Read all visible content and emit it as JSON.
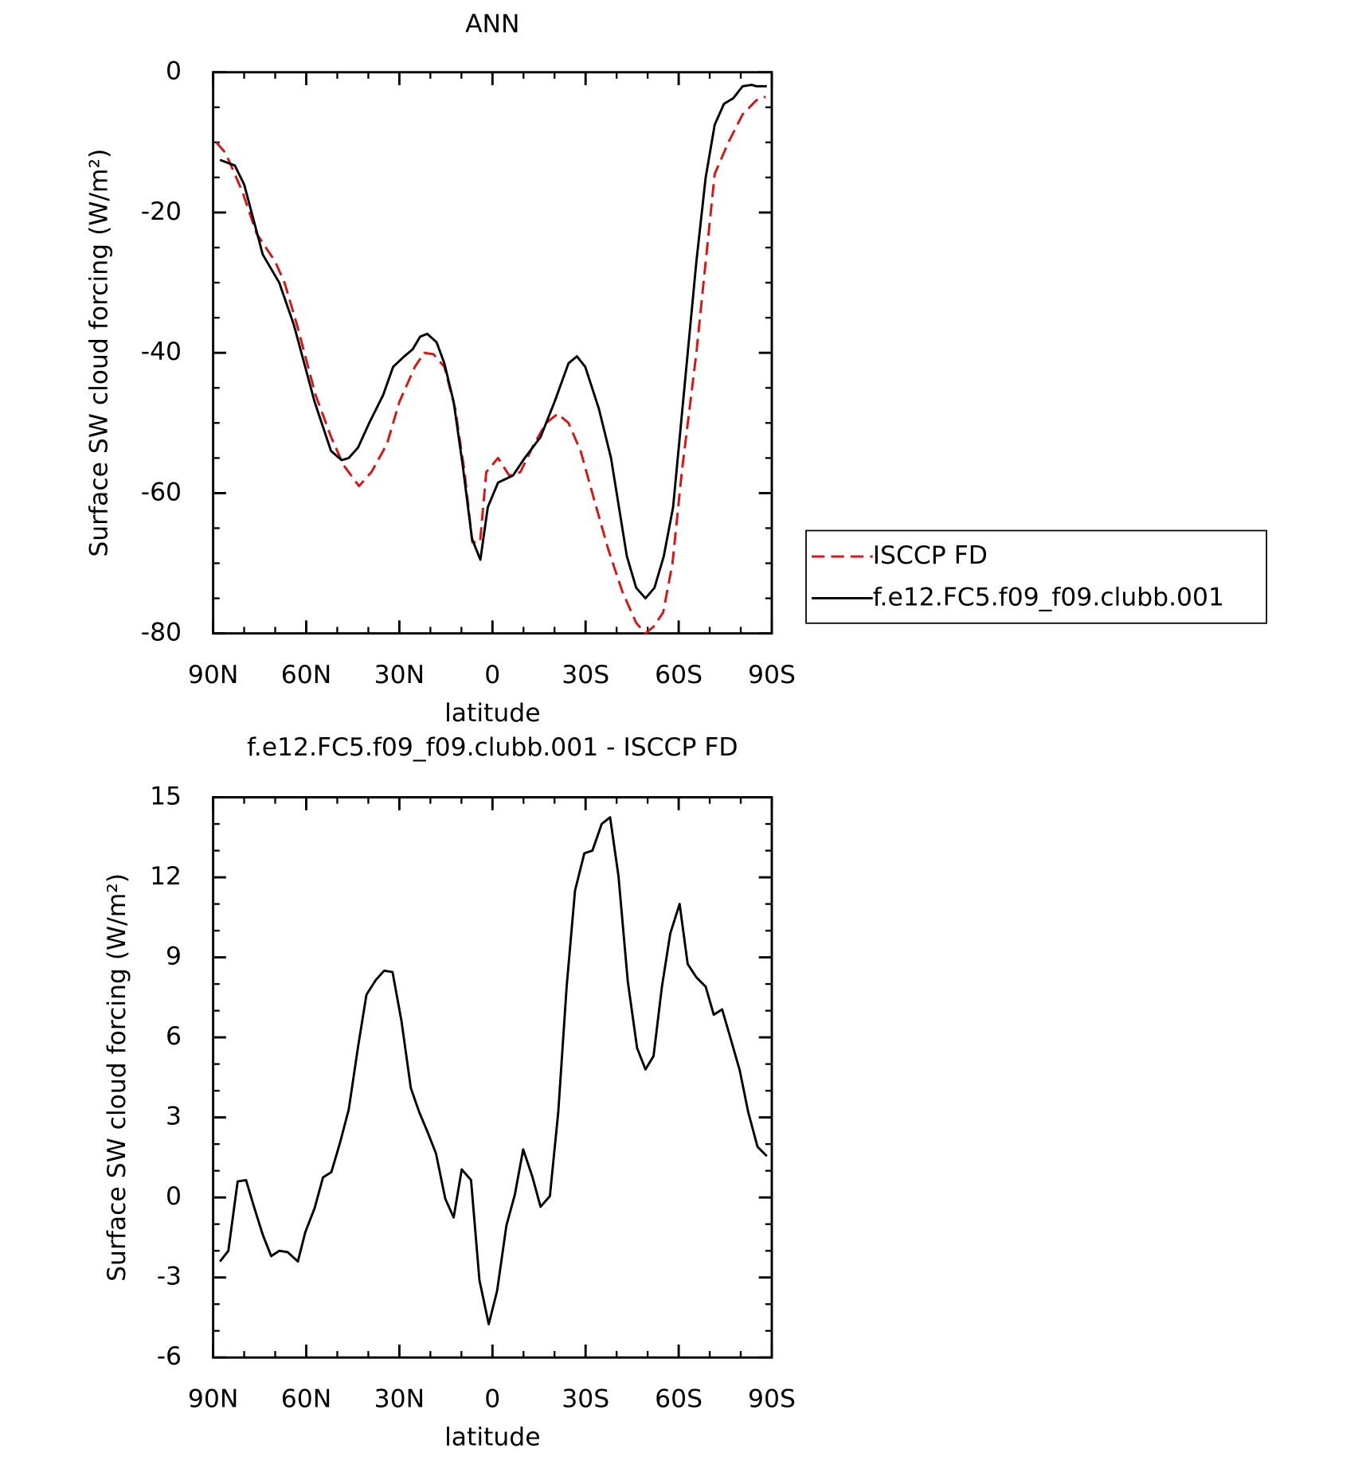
{
  "chart_data": [
    {
      "type": "line",
      "title": "ANN",
      "xlabel": "latitude",
      "ylabel": "Surface SW cloud forcing (W/m²)",
      "xlim": [
        90,
        -90
      ],
      "ylim": [
        -80,
        0
      ],
      "xticks": [
        {
          "value": 90,
          "label": "90N"
        },
        {
          "value": 60,
          "label": "60N"
        },
        {
          "value": 30,
          "label": "30N"
        },
        0,
        {
          "value": -30,
          "label": "30S"
        },
        {
          "value": -60,
          "label": "60S"
        },
        {
          "value": -90,
          "label": "90S"
        }
      ],
      "yticks": [
        0,
        -20,
        -40,
        -60,
        -80
      ],
      "legend": "right",
      "series": [
        {
          "name": "ISCCP FD",
          "color": "#e01010",
          "style": "dashed",
          "x": [
            89,
            86,
            80.6,
            76,
            73,
            70,
            67,
            63,
            57,
            52,
            48,
            43,
            39,
            34,
            30,
            25,
            22,
            19,
            15.5,
            12,
            9,
            6.5,
            4,
            2,
            -1.8,
            -5.4,
            -9,
            -13.4,
            -17.3,
            -21,
            -24.5,
            -28.4,
            -32.8,
            -37.3,
            -41.8,
            -46.3,
            -49.3,
            -52,
            -55,
            -58,
            -61,
            -65.7,
            -68.7,
            -71.6,
            -76,
            -80.6,
            -85,
            -88
          ],
          "values": [
            -10,
            -11.5,
            -17,
            -23,
            -25,
            -27,
            -30,
            -36,
            -46,
            -52,
            -56,
            -59,
            -57,
            -53,
            -47,
            -42,
            -40,
            -40.2,
            -42,
            -48,
            -57,
            -67,
            -67,
            -57,
            -55,
            -57.5,
            -57,
            -53,
            -50,
            -48.7,
            -50,
            -54,
            -61,
            -68,
            -74,
            -78.5,
            -80,
            -79,
            -77,
            -70,
            -57,
            -40,
            -27,
            -14.5,
            -10,
            -6,
            -4,
            -3.5
          ]
        },
        {
          "name": "f.e12.FC5.f09_f09.clubb.001",
          "color": "#000000",
          "style": "solid",
          "x": [
            87.8,
            83,
            80,
            74,
            68.7,
            64,
            57.3,
            52,
            48.6,
            46.3,
            43.3,
            39.7,
            35.2,
            32,
            28.4,
            25.7,
            23.3,
            21,
            18,
            15.5,
            12.5,
            9.6,
            6.6,
            3.9,
            1.5,
            -1.8,
            -6.6,
            -10.4,
            -15.5,
            -20,
            -24.5,
            -27.2,
            -29.9,
            -34.3,
            -38.2,
            -43.3,
            -46.3,
            -49.3,
            -52.2,
            -55.2,
            -58.2,
            -62.7,
            -65.7,
            -68.7,
            -71.6,
            -74.6,
            -77.6,
            -80.6,
            -83.6,
            -85,
            -88.4
          ],
          "values": [
            -12.5,
            -13.3,
            -16,
            -26,
            -30,
            -36,
            -47,
            -54,
            -55.3,
            -55,
            -53.5,
            -50,
            -46,
            -42,
            -40.5,
            -39.5,
            -37.7,
            -37.3,
            -38.5,
            -41.5,
            -47,
            -56,
            -66.5,
            -69.5,
            -62,
            -58.5,
            -57.5,
            -55,
            -52,
            -47,
            -41.5,
            -40.5,
            -42,
            -48,
            -55,
            -69,
            -73.5,
            -75,
            -73.5,
            -69,
            -62,
            -41,
            -27,
            -15,
            -7.5,
            -4.5,
            -3.7,
            -2,
            -1.8,
            -2,
            -2
          ]
        }
      ]
    },
    {
      "type": "line",
      "title": "f.e12.FC5.f09_f09.clubb.001 - ISCCP FD",
      "xlabel": "latitude",
      "ylabel": "Surface SW cloud forcing (W/m²)",
      "xlim": [
        90,
        -90
      ],
      "ylim": [
        -6,
        15
      ],
      "xticks": [
        {
          "value": 90,
          "label": "90N"
        },
        {
          "value": 60,
          "label": "60N"
        },
        {
          "value": 30,
          "label": "30N"
        },
        0,
        {
          "value": -30,
          "label": "30S"
        },
        {
          "value": -60,
          "label": "60S"
        },
        {
          "value": -90,
          "label": "90S"
        }
      ],
      "yticks": [
        15,
        12,
        9,
        6,
        3,
        0,
        -3,
        -6
      ],
      "series": [
        {
          "color": "#000000",
          "style": "solid",
          "x": [
            87.8,
            85.1,
            82.1,
            79.4,
            76.7,
            74.0,
            71.3,
            68.7,
            66.0,
            62.7,
            60.3,
            57.3,
            54.6,
            51.9,
            49.0,
            46.3,
            43.3,
            40.6,
            37.6,
            34.9,
            32.2,
            29.3,
            26.3,
            23.6,
            20.9,
            18.2,
            15.2,
            12.5,
            9.9,
            6.9,
            4.2,
            1.2,
            -1.5,
            -4.5,
            -7.2,
            -9.9,
            -12.8,
            -15.5,
            -18.5,
            -21.2,
            -23.9,
            -26.6,
            -29.6,
            -32.2,
            -35.2,
            -37.9,
            -40.6,
            -43.6,
            -46.6,
            -49.3,
            -51.9,
            -54.6,
            -57.3,
            -60.3,
            -62.9,
            -65.7,
            -68.7,
            -71.3,
            -74.0,
            -77.0,
            -79.7,
            -82.4,
            -85.4,
            -88.4
          ],
          "values": [
            -2.4,
            -2,
            0.6,
            0.65,
            -0.4,
            -1.4,
            -2.2,
            -2,
            -2.05,
            -2.4,
            -1.3,
            -0.4,
            0.75,
            0.95,
            2.1,
            3.3,
            5.65,
            7.6,
            8.15,
            8.5,
            8.45,
            6.6,
            4.1,
            3.2,
            2.45,
            1.65,
            -0.05,
            -0.75,
            1.05,
            0.65,
            -3.1,
            -4.75,
            -3.5,
            -1.05,
            0.1,
            1.8,
            0.8,
            -0.35,
            0.05,
            3.2,
            7.9,
            11.5,
            12.9,
            13,
            14,
            14.25,
            12.05,
            8.1,
            5.6,
            4.8,
            5.3,
            7.9,
            9.9,
            11,
            8.75,
            8.25,
            7.9,
            6.85,
            7.05,
            5.85,
            4.75,
            3.2,
            1.9,
            1.55
          ]
        }
      ]
    }
  ]
}
